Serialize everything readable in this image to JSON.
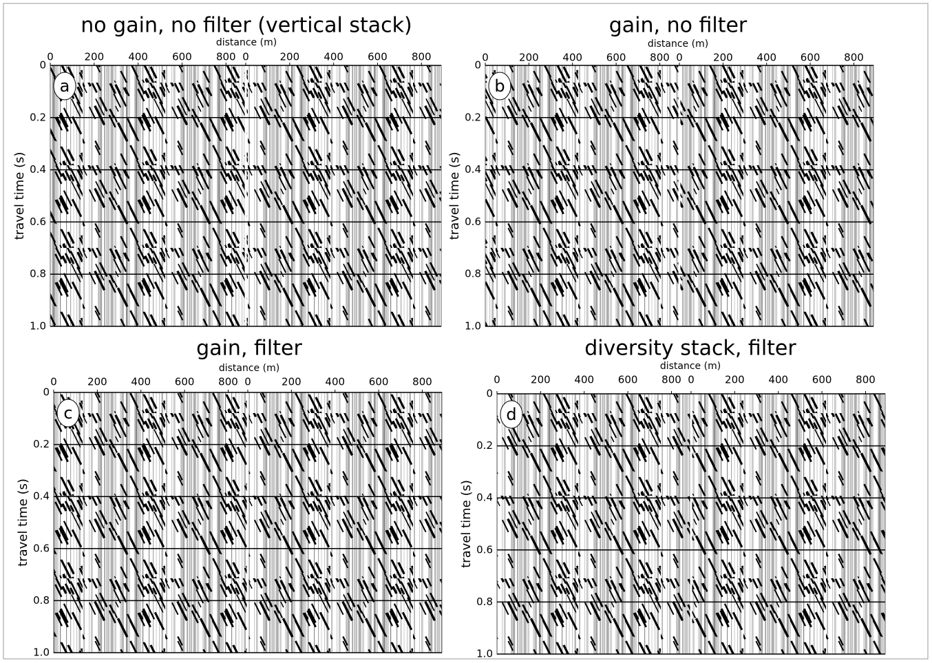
{
  "chart_data": [
    {
      "type": "seismic",
      "title": "no gain, no filter (vertical stack)",
      "panel_label": "a",
      "x_label": "distance (m)",
      "y_label": "travel time (s)",
      "xlim": [
        0,
        890
      ],
      "xticks": [
        0,
        200,
        400,
        600,
        800
      ],
      "ylim": [
        0,
        1
      ],
      "yticks": [
        0,
        0.2,
        0.4,
        0.6,
        0.8,
        {
          "value": 1,
          "label": "1.0"
        }
      ],
      "grid": true
    },
    {
      "type": "seismic",
      "title": "gain, no filter",
      "panel_label": "b",
      "x_label": "distance (m)",
      "y_label": "travel time (s)",
      "xlim": [
        0,
        890
      ],
      "xticks": [
        0,
        200,
        400,
        600,
        800
      ],
      "ylim": [
        0,
        1
      ],
      "yticks": [
        0,
        0.2,
        0.4,
        0.6,
        0.8,
        {
          "value": 1,
          "label": "1.0"
        }
      ],
      "grid": true
    },
    {
      "type": "seismic",
      "title": "gain, filter",
      "panel_label": "c",
      "x_label": "distance (m)",
      "y_label": "travel time (s)",
      "xlim": [
        0,
        890
      ],
      "xticks": [
        0,
        200,
        400,
        600,
        800
      ],
      "ylim": [
        0,
        1
      ],
      "yticks": [
        0,
        0.2,
        0.4,
        0.6,
        0.8,
        {
          "value": 1,
          "label": "1.0"
        }
      ],
      "grid": true
    },
    {
      "type": "seismic",
      "title": "diversity stack, filter",
      "panel_label": "d",
      "x_label": "distance (m)",
      "y_label": "travel time (s)",
      "xlim": [
        0,
        890
      ],
      "xticks": [
        0,
        200,
        400,
        600,
        800
      ],
      "ylim": [
        0,
        1
      ],
      "yticks": [
        0,
        0.2,
        0.4,
        0.6,
        0.8,
        {
          "value": 1,
          "label": "1.0"
        }
      ],
      "grid": true
    }
  ]
}
